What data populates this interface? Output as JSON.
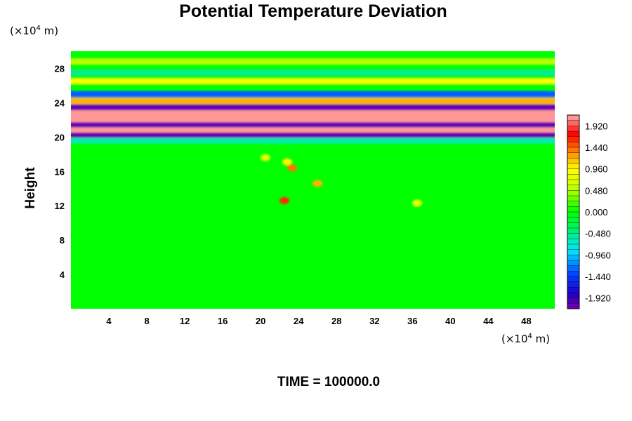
{
  "chart_data": {
    "type": "heatmap",
    "title": "Potential Temperature Deviation",
    "xlabel": "",
    "ylabel": "Height",
    "x_unit_prefix": "(×10",
    "x_unit_exp": "4",
    "x_unit_suffix": " m)",
    "y_unit_prefix": "(×10",
    "y_unit_exp": "4",
    "y_unit_suffix": " m)",
    "xlim": [
      0,
      51
    ],
    "ylim": [
      0,
      30
    ],
    "x_ticks": [
      "4",
      "8",
      "12",
      "16",
      "20",
      "24",
      "28",
      "32",
      "36",
      "40",
      "44",
      "48"
    ],
    "x_tick_values": [
      4,
      8,
      12,
      16,
      20,
      24,
      28,
      32,
      36,
      40,
      44,
      48
    ],
    "y_ticks": [
      "4",
      "8",
      "12",
      "16",
      "20",
      "24",
      "28"
    ],
    "y_tick_values": [
      4,
      8,
      12,
      16,
      20,
      24,
      28
    ],
    "colorbar": {
      "min": -2.16,
      "max": 2.16,
      "labels": [
        "1.920",
        "1.440",
        "0.960",
        "0.480",
        "0.000",
        "-0.480",
        "-0.960",
        "-1.440",
        "-1.920"
      ],
      "label_values": [
        1.92,
        1.44,
        0.96,
        0.48,
        0.0,
        -0.48,
        -0.96,
        -1.44,
        -1.92
      ],
      "levels": 36
    },
    "bands": [
      {
        "y": 19.6,
        "value": -0.6
      },
      {
        "y": 20.3,
        "value": -2.1
      },
      {
        "y": 20.9,
        "value": 2.1
      },
      {
        "y": 21.5,
        "value": -2.1
      },
      {
        "y": 22.1,
        "value": 2.1
      },
      {
        "y": 22.8,
        "value": 2.1
      },
      {
        "y": 23.5,
        "value": -2.1
      },
      {
        "y": 24.2,
        "value": 1.2
      },
      {
        "y": 25.0,
        "value": -1.3
      },
      {
        "y": 26.5,
        "value": 0.9
      },
      {
        "y": 27.5,
        "value": -0.5
      },
      {
        "y": 28.8,
        "value": 0.5
      }
    ],
    "blobs": [
      {
        "x": 22.8,
        "y": 17.1,
        "value": 1.0
      },
      {
        "x": 23.3,
        "y": 16.4,
        "value": 1.4
      },
      {
        "x": 22.5,
        "y": 12.6,
        "value": 1.6
      },
      {
        "x": 26.0,
        "y": 14.6,
        "value": 1.2
      },
      {
        "x": 36.5,
        "y": 12.3,
        "value": 0.8
      },
      {
        "x": 20.5,
        "y": 17.6,
        "value": 0.7
      }
    ],
    "footer": "TIME = 100000.0"
  }
}
